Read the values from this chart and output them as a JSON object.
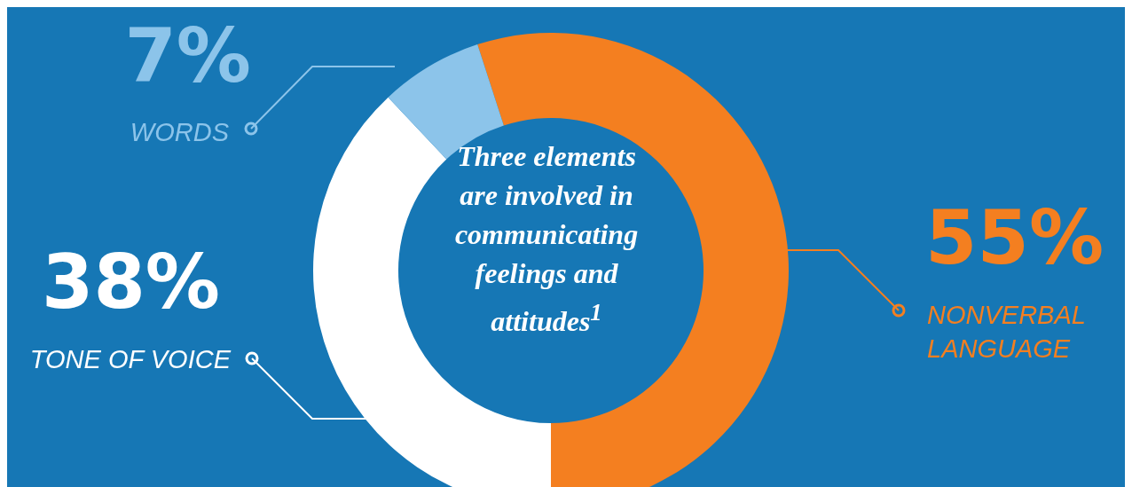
{
  "chart_data": {
    "type": "donut",
    "title": "Three elements are involved in communicating feelings and attitudes$^{1}$",
    "categories": [
      "NONVERBAL LANGUAGE",
      "TONE OF VOICE",
      "WORDS"
    ],
    "values": [
      55,
      38,
      7
    ],
    "value_labels": [
      "55%",
      "38%",
      "7%"
    ],
    "colors": [
      "#f47f20",
      "#ffffff",
      "#8cc4ea"
    ],
    "legend": "left"
  }
}
